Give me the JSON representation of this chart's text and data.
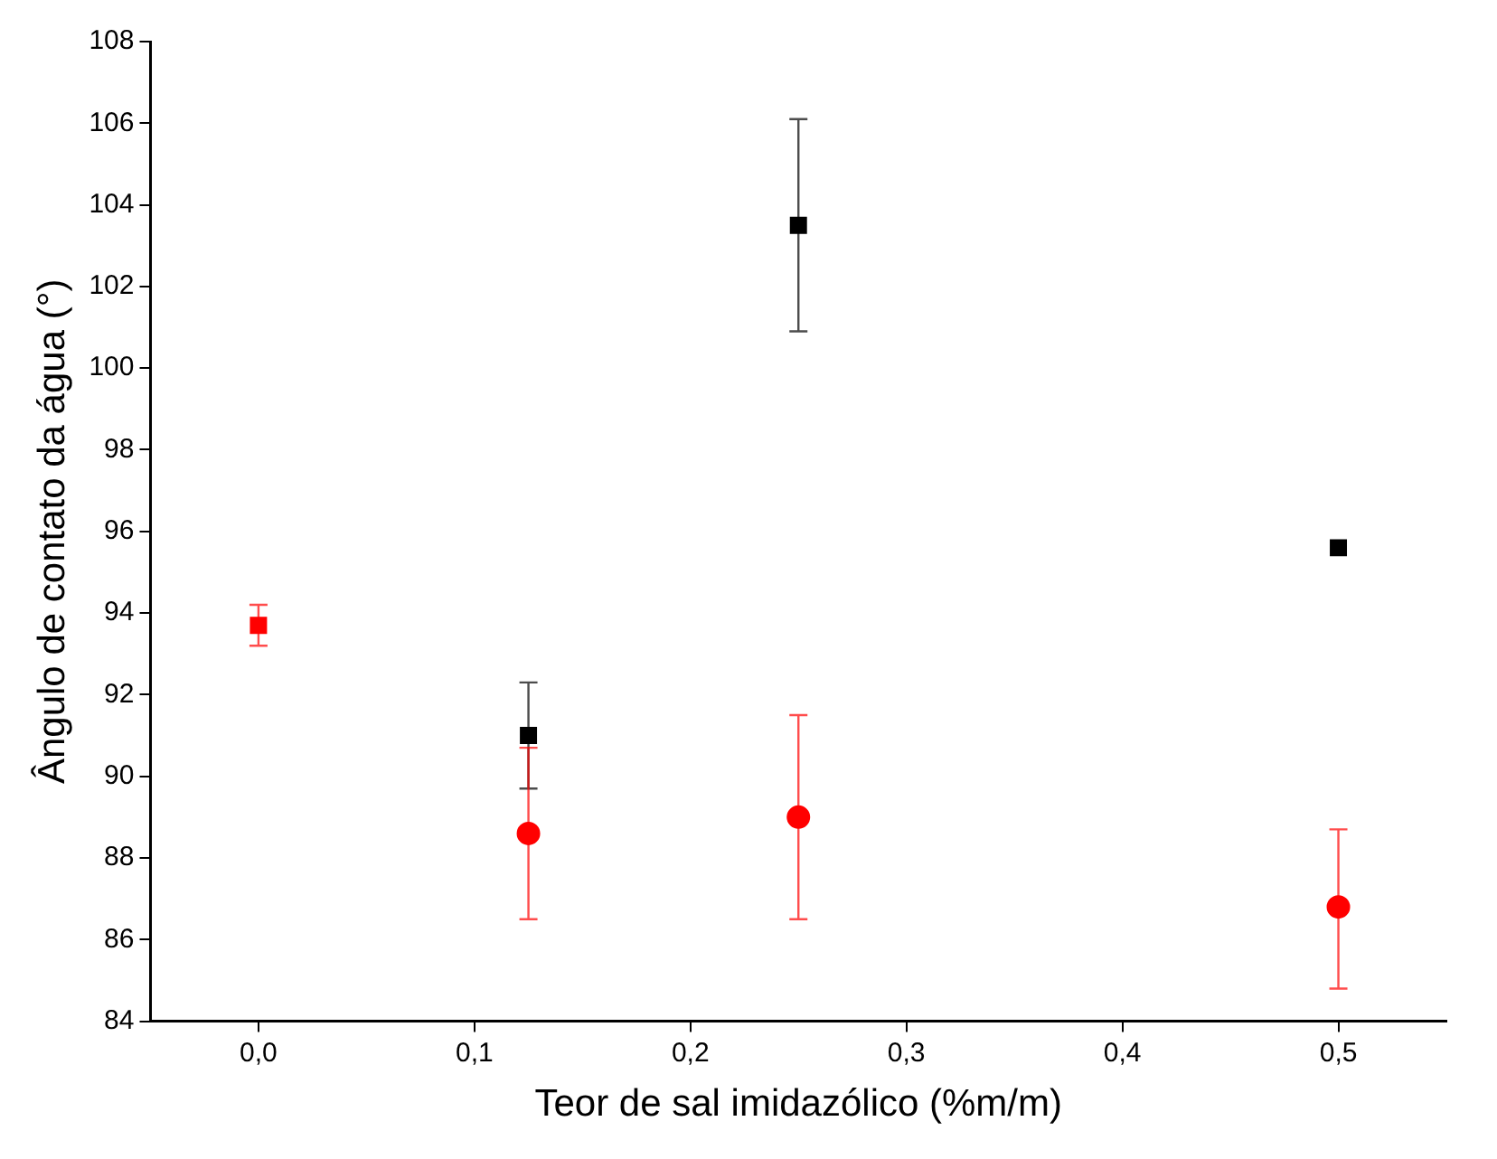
{
  "chart_data": {
    "type": "scatter",
    "xlabel": "Teor de sal imidazólico (%m/m)",
    "ylabel": "Ângulo de contato da água (°)",
    "series": [
      {
        "x": [
          0.125,
          0.25,
          0.5
        ],
        "values": [
          91.0,
          103.5,
          95.6
        ],
        "color": "#000000",
        "marker": "square",
        "errors": [
          [
            89.7,
            92.3
          ],
          [
            100.9,
            106.1
          ],
          null
        ]
      },
      {
        "x": [
          0.125,
          0.25,
          0.5
        ],
        "values": [
          88.6,
          89.0,
          86.8
        ],
        "color": "#ff0000",
        "marker": "circle",
        "errors": [
          [
            86.5,
            90.7
          ],
          [
            86.5,
            91.5
          ],
          [
            84.8,
            88.7
          ]
        ]
      },
      {
        "x": [
          0
        ],
        "values": [
          93.7
        ],
        "color": "#ff0000",
        "marker": "square",
        "errors": [
          [
            93.2,
            94.2
          ]
        ]
      }
    ],
    "xlim": [
      -0.05,
      0.55
    ],
    "xticks": [
      {
        "value": 0,
        "label": "0,0"
      },
      {
        "value": 0.1,
        "label": "0,1"
      },
      {
        "value": 0.2,
        "label": "0,2"
      },
      {
        "value": 0.3,
        "label": "0,3"
      },
      {
        "value": 0.4,
        "label": "0,4"
      },
      {
        "value": 0.5,
        "label": "0,5"
      }
    ],
    "ylim": [
      84,
      108
    ],
    "yticks": [
      84,
      86,
      88,
      90,
      92,
      94,
      96,
      98,
      100,
      102,
      104,
      106,
      108
    ],
    "grid": false,
    "legend": false
  }
}
